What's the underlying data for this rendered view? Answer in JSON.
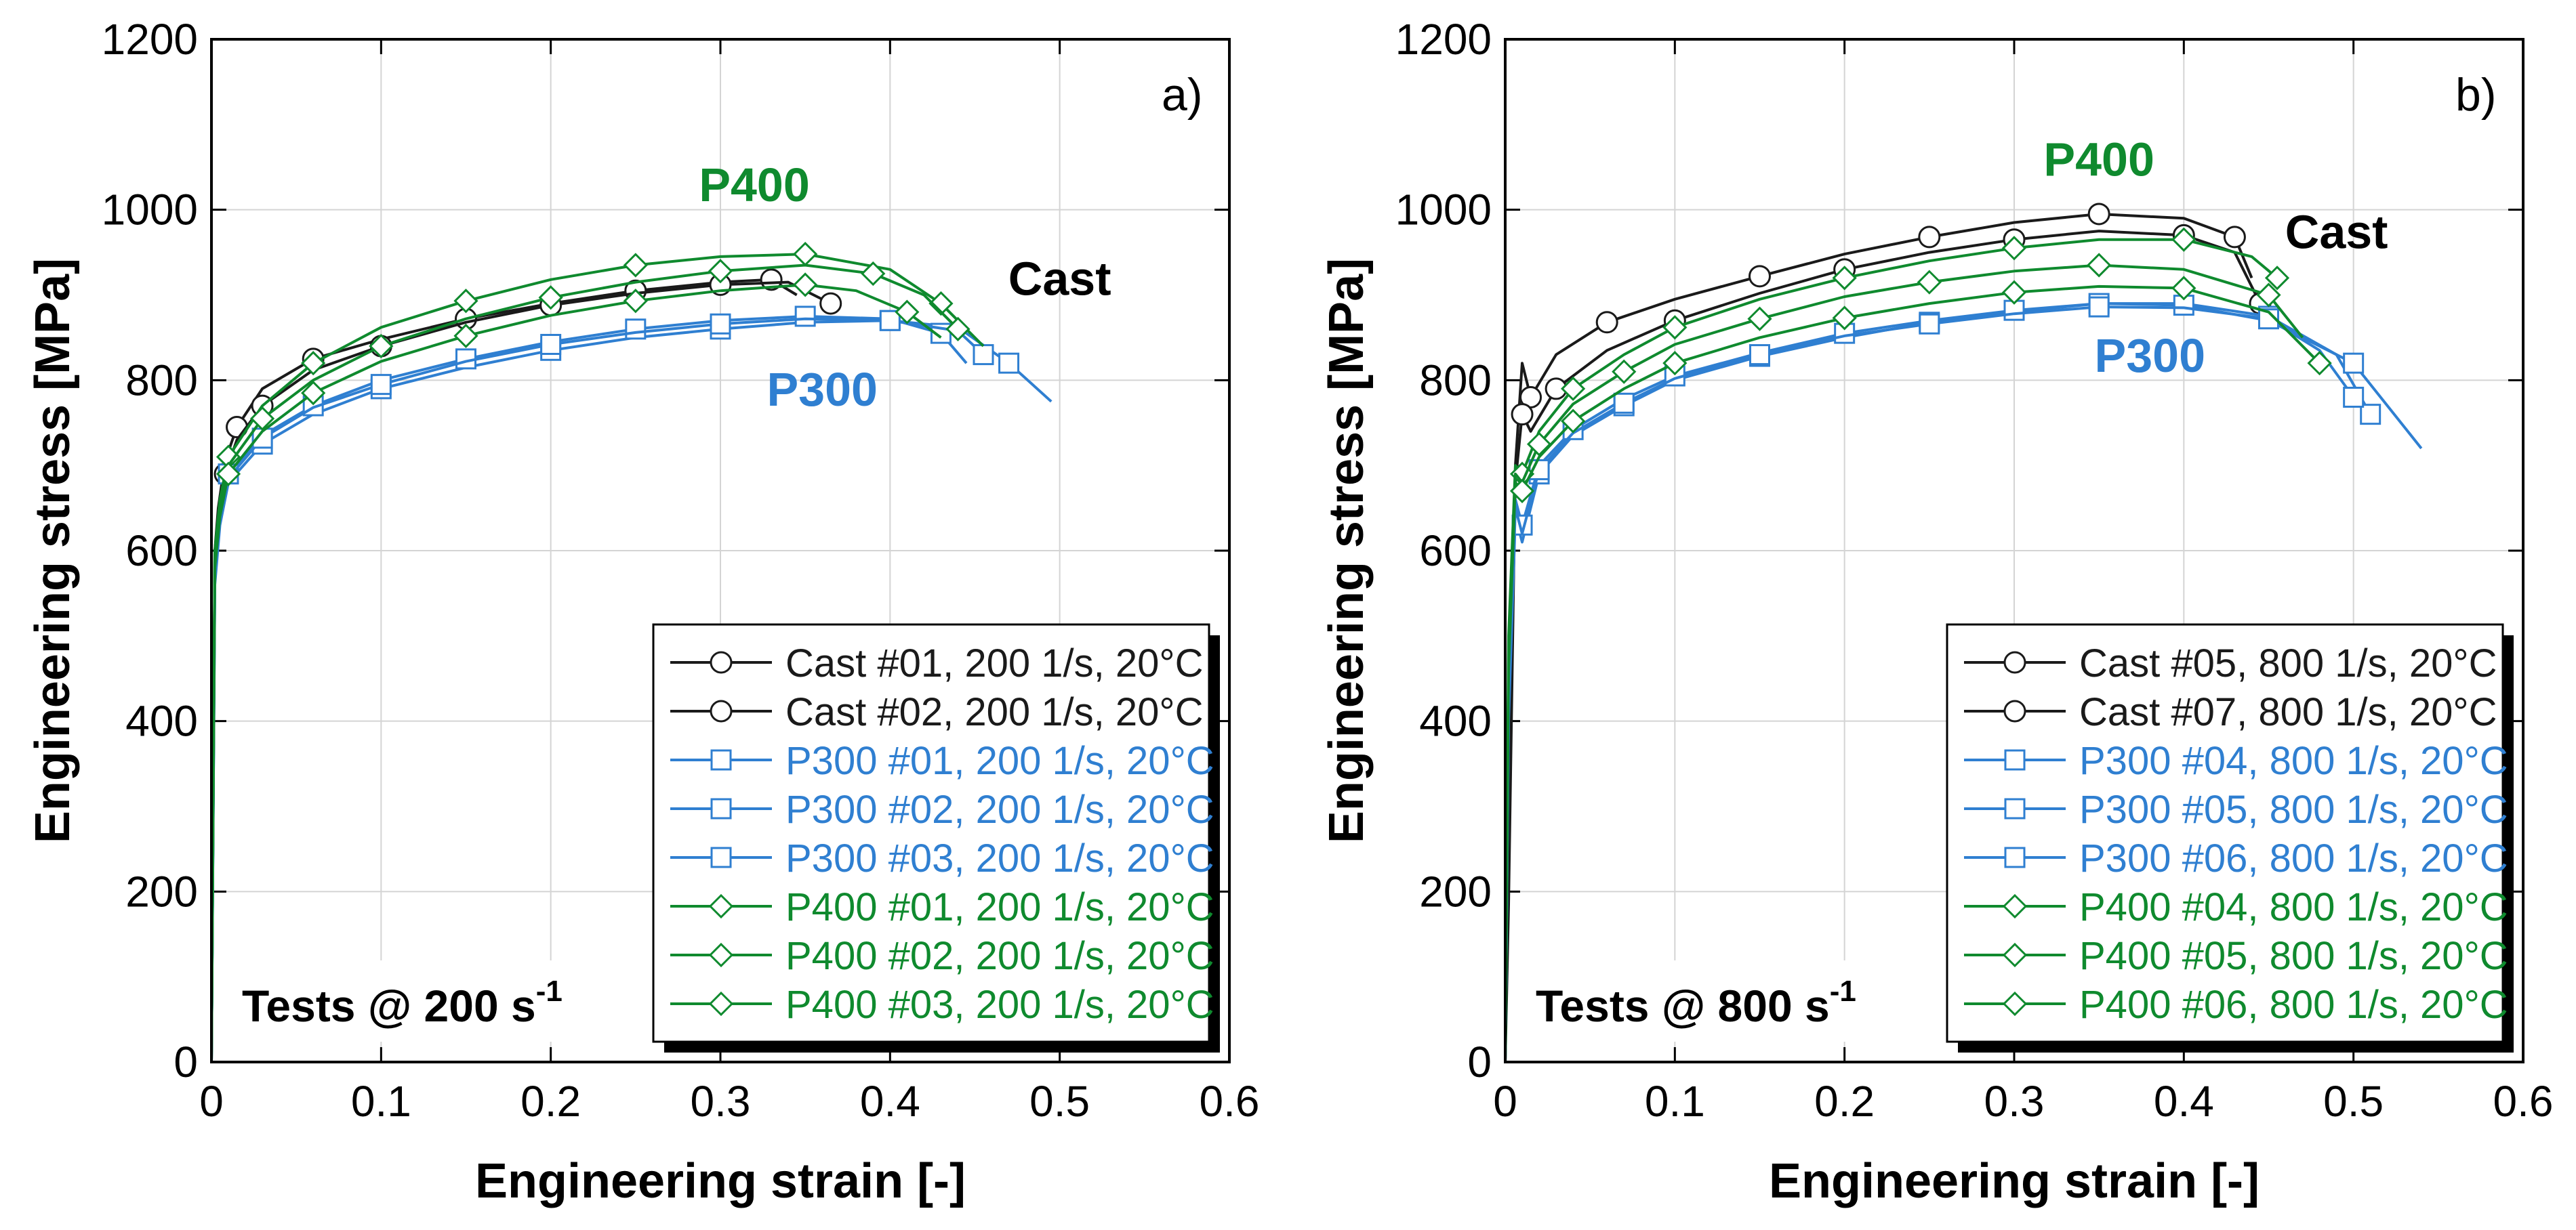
{
  "chart_data": [
    {
      "type": "line",
      "panel_label": "a)",
      "xlabel": "Engineering strain [-]",
      "ylabel": "Engineering stress [MPa]",
      "xlim": [
        0,
        0.6
      ],
      "ylim": [
        0,
        1200
      ],
      "xticks": [
        "0",
        "0.1",
        "0.2",
        "0.3",
        "0.4",
        "0.5",
        "0.6"
      ],
      "yticks": [
        "0",
        "200",
        "400",
        "600",
        "800",
        "1000",
        "1200"
      ],
      "grid": true,
      "legend_position": "bottom-right",
      "annotations": {
        "tests_prefix": "Tests @ 200 s",
        "tests_sup": "-1",
        "cast": "Cast",
        "p400": "P400",
        "p300": "P300"
      },
      "series": [
        {
          "name": "Cast #01, 200 1/s, 20°C",
          "group": "cast",
          "marker": "circle",
          "x": [
            0,
            0.002,
            0.004,
            0.008,
            0.015,
            0.03,
            0.06,
            0.1,
            0.15,
            0.2,
            0.25,
            0.3,
            0.33,
            0.345
          ],
          "y": [
            0,
            600,
            650,
            705,
            745,
            790,
            825,
            848,
            872,
            890,
            905,
            915,
            918,
            900
          ]
        },
        {
          "name": "Cast #02, 200 1/s, 20°C",
          "group": "cast",
          "marker": "circle",
          "x": [
            0,
            0.002,
            0.004,
            0.008,
            0.015,
            0.03,
            0.06,
            0.1,
            0.15,
            0.2,
            0.25,
            0.3,
            0.34,
            0.365
          ],
          "y": [
            0,
            590,
            640,
            690,
            730,
            770,
            812,
            840,
            868,
            888,
            902,
            912,
            915,
            890
          ]
        },
        {
          "name": "P300 #01, 200 1/s, 20°C",
          "group": "p300",
          "marker": "square",
          "x": [
            0,
            0.002,
            0.005,
            0.01,
            0.03,
            0.06,
            0.1,
            0.15,
            0.2,
            0.25,
            0.3,
            0.35,
            0.4,
            0.44,
            0.47,
            0.495
          ],
          "y": [
            0,
            560,
            630,
            680,
            725,
            760,
            790,
            815,
            835,
            850,
            860,
            868,
            870,
            862,
            820,
            775
          ]
        },
        {
          "name": "P300 #02, 200 1/s, 20°C",
          "group": "p300",
          "marker": "square",
          "x": [
            0,
            0.002,
            0.005,
            0.01,
            0.03,
            0.06,
            0.1,
            0.15,
            0.2,
            0.25,
            0.3,
            0.35,
            0.4,
            0.43,
            0.445
          ],
          "y": [
            0,
            570,
            640,
            690,
            735,
            770,
            800,
            825,
            845,
            860,
            870,
            875,
            872,
            855,
            820
          ]
        },
        {
          "name": "P300 #03, 200 1/s, 20°C",
          "group": "p300",
          "marker": "square",
          "x": [
            0,
            0.002,
            0.005,
            0.01,
            0.03,
            0.06,
            0.1,
            0.15,
            0.2,
            0.25,
            0.3,
            0.35,
            0.4,
            0.44,
            0.455
          ],
          "y": [
            0,
            565,
            635,
            685,
            732,
            768,
            795,
            822,
            842,
            856,
            866,
            872,
            870,
            858,
            830
          ]
        },
        {
          "name": "P400 #01, 200 1/s, 20°C",
          "group": "p400",
          "marker": "diamond",
          "x": [
            0,
            0.002,
            0.005,
            0.01,
            0.03,
            0.06,
            0.1,
            0.15,
            0.2,
            0.25,
            0.3,
            0.35,
            0.4,
            0.43,
            0.455
          ],
          "y": [
            0,
            600,
            660,
            710,
            770,
            820,
            862,
            893,
            918,
            935,
            945,
            948,
            930,
            890,
            840
          ]
        },
        {
          "name": "P400 #02, 200 1/s, 20°C",
          "group": "p400",
          "marker": "diamond",
          "x": [
            0,
            0.002,
            0.005,
            0.01,
            0.03,
            0.06,
            0.1,
            0.15,
            0.2,
            0.25,
            0.3,
            0.35,
            0.39,
            0.42,
            0.44
          ],
          "y": [
            0,
            590,
            650,
            700,
            755,
            800,
            840,
            872,
            897,
            915,
            928,
            935,
            925,
            900,
            860
          ]
        },
        {
          "name": "P400 #03, 200 1/s, 20°C",
          "group": "p400",
          "marker": "diamond",
          "x": [
            0,
            0.002,
            0.005,
            0.01,
            0.03,
            0.06,
            0.1,
            0.15,
            0.2,
            0.25,
            0.3,
            0.35,
            0.38,
            0.41,
            0.43
          ],
          "y": [
            0,
            580,
            640,
            690,
            740,
            785,
            822,
            852,
            876,
            893,
            905,
            912,
            905,
            880,
            850
          ]
        }
      ]
    },
    {
      "type": "line",
      "panel_label": "b)",
      "xlabel": "Engineering strain [-]",
      "ylabel": "Engineering stress [MPa]",
      "xlim": [
        0,
        0.6
      ],
      "ylim": [
        0,
        1200
      ],
      "xticks": [
        "0",
        "0.1",
        "0.2",
        "0.3",
        "0.4",
        "0.5",
        "0.6"
      ],
      "yticks": [
        "0",
        "200",
        "400",
        "600",
        "800",
        "1000",
        "1200"
      ],
      "grid": true,
      "legend_position": "bottom-right",
      "annotations": {
        "tests_prefix": "Tests @ 800 s",
        "tests_sup": "-1",
        "cast": "Cast",
        "p400": "P400",
        "p300": "P300"
      },
      "series": [
        {
          "name": "Cast #05, 800 1/s, 20°C",
          "group": "cast",
          "marker": "circle",
          "x": [
            0,
            0.002,
            0.006,
            0.01,
            0.015,
            0.03,
            0.06,
            0.1,
            0.15,
            0.2,
            0.25,
            0.3,
            0.35,
            0.4,
            0.43,
            0.44
          ],
          "y": [
            0,
            185,
            700,
            820,
            780,
            830,
            868,
            895,
            922,
            948,
            968,
            985,
            995,
            990,
            968,
            920
          ]
        },
        {
          "name": "Cast #07, 800 1/s, 20°C",
          "group": "cast",
          "marker": "circle",
          "x": [
            0,
            0.002,
            0.006,
            0.01,
            0.015,
            0.03,
            0.06,
            0.1,
            0.15,
            0.2,
            0.25,
            0.3,
            0.35,
            0.4,
            0.43,
            0.445
          ],
          "y": [
            0,
            300,
            680,
            760,
            740,
            790,
            835,
            870,
            902,
            930,
            950,
            965,
            975,
            970,
            950,
            890
          ]
        },
        {
          "name": "P300 #04, 800 1/s, 20°C",
          "group": "p300",
          "marker": "square",
          "x": [
            0,
            0.002,
            0.006,
            0.01,
            0.02,
            0.04,
            0.07,
            0.1,
            0.15,
            0.2,
            0.25,
            0.3,
            0.35,
            0.4,
            0.45,
            0.49,
            0.51
          ],
          "y": [
            0,
            400,
            640,
            610,
            690,
            735,
            770,
            800,
            828,
            850,
            868,
            880,
            890,
            890,
            875,
            830,
            760
          ]
        },
        {
          "name": "P300 #05, 800 1/s, 20°C",
          "group": "p300",
          "marker": "square",
          "x": [
            0,
            0.002,
            0.006,
            0.01,
            0.02,
            0.04,
            0.07,
            0.1,
            0.15,
            0.2,
            0.25,
            0.3,
            0.35,
            0.4,
            0.45,
            0.5,
            0.54
          ],
          "y": [
            0,
            420,
            660,
            630,
            700,
            742,
            778,
            805,
            832,
            855,
            870,
            882,
            890,
            888,
            870,
            820,
            720
          ]
        },
        {
          "name": "P300 #06, 800 1/s, 20°C",
          "group": "p300",
          "marker": "square",
          "x": [
            0,
            0.002,
            0.006,
            0.01,
            0.02,
            0.04,
            0.07,
            0.1,
            0.15,
            0.2,
            0.25,
            0.3,
            0.35,
            0.4,
            0.45,
            0.48,
            0.5
          ],
          "y": [
            0,
            410,
            650,
            620,
            695,
            738,
            773,
            802,
            830,
            852,
            866,
            878,
            886,
            885,
            872,
            835,
            780
          ]
        },
        {
          "name": "P400 #04, 800 1/s, 20°C",
          "group": "p400",
          "marker": "diamond",
          "x": [
            0,
            0.002,
            0.006,
            0.01,
            0.02,
            0.04,
            0.07,
            0.1,
            0.15,
            0.2,
            0.25,
            0.3,
            0.35,
            0.4,
            0.44,
            0.455
          ],
          "y": [
            0,
            500,
            700,
            690,
            740,
            790,
            830,
            862,
            895,
            920,
            940,
            955,
            965,
            965,
            945,
            920
          ]
        },
        {
          "name": "P400 #05, 800 1/s, 20°C",
          "group": "p400",
          "marker": "diamond",
          "x": [
            0,
            0.002,
            0.006,
            0.01,
            0.02,
            0.04,
            0.07,
            0.1,
            0.15,
            0.2,
            0.25,
            0.3,
            0.35,
            0.4,
            0.45,
            0.47
          ],
          "y": [
            0,
            480,
            690,
            680,
            725,
            772,
            810,
            842,
            872,
            898,
            915,
            928,
            935,
            930,
            900,
            850
          ]
        },
        {
          "name": "P400 #06, 800 1/s, 20°C",
          "group": "p400",
          "marker": "diamond",
          "x": [
            0,
            0.002,
            0.006,
            0.01,
            0.02,
            0.04,
            0.07,
            0.1,
            0.15,
            0.2,
            0.25,
            0.3,
            0.35,
            0.4,
            0.45,
            0.48
          ],
          "y": [
            0,
            460,
            680,
            670,
            710,
            752,
            790,
            820,
            850,
            873,
            890,
            903,
            910,
            908,
            880,
            820
          ]
        }
      ]
    }
  ],
  "colors": {
    "cast": "#1a1a1a",
    "p300": "#2f7fd1",
    "p400": "#0f8a2e",
    "grid": "#d4d4d4",
    "axis": "#000000"
  }
}
